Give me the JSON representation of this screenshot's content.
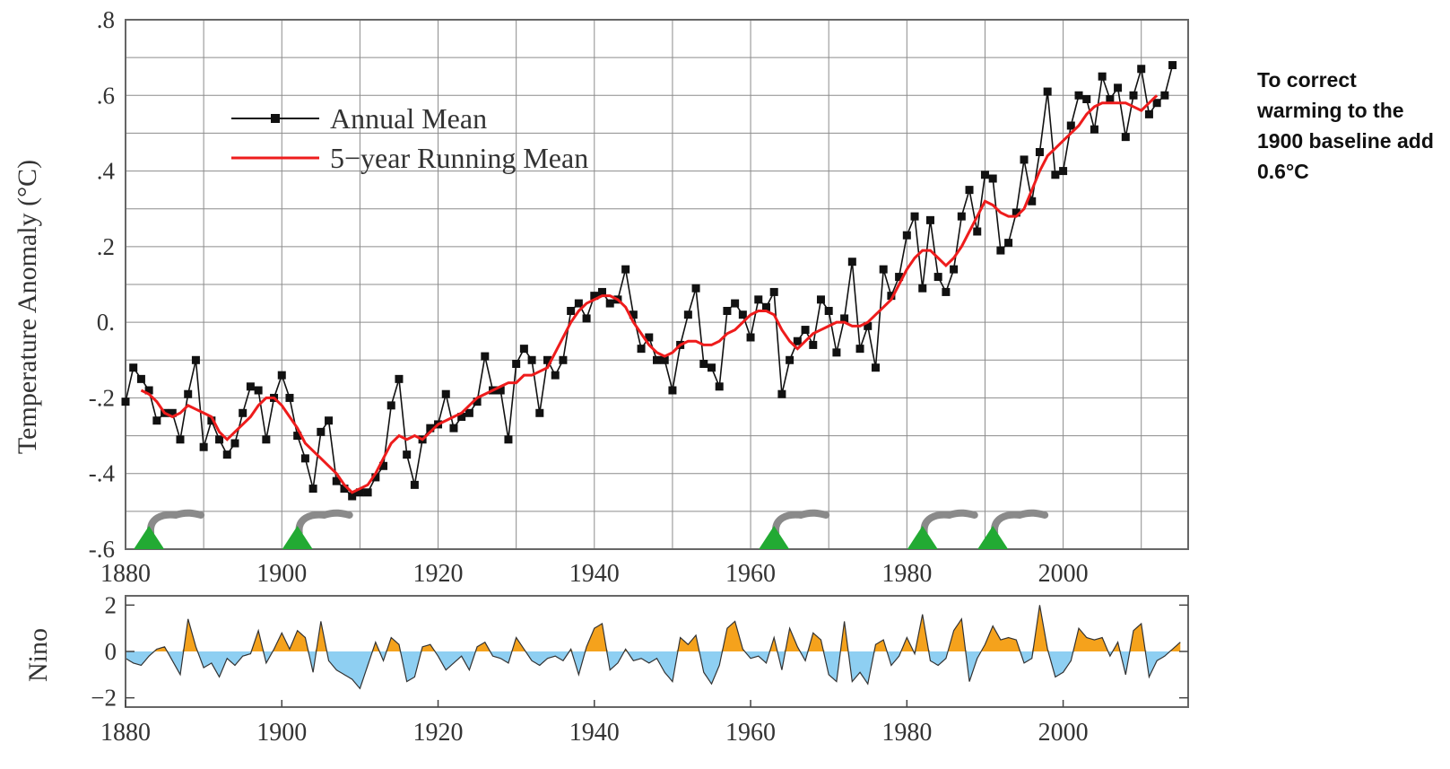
{
  "note": "To correct warming to the 1900 baseline add 0.6°C",
  "colors": {
    "annual": "#111111",
    "running": "#ee1c1c",
    "nino_pos": "#f5a21c",
    "nino_neg": "#8ecff2",
    "volcano": "#22aa33",
    "plume": "#8a8a8a",
    "grid": "#8c8c8c"
  },
  "icons": [
    "volcano-icon"
  ],
  "chart_data": [
    {
      "type": "line",
      "title": "",
      "xlabel": "",
      "ylabel": "Temperature Anomaly (°C)",
      "xlim": [
        1880,
        2016
      ],
      "ylim": [
        -0.6,
        0.8
      ],
      "grid": true,
      "legend_placement": "top-left",
      "x_tick_labels": [
        "1880",
        "1900",
        "1920",
        "1940",
        "1960",
        "1980",
        "2000"
      ],
      "y_tick_labels": [
        ".8",
        ".6",
        ".4",
        ".2",
        "0.",
        "-.2",
        "-.4",
        "-.6"
      ],
      "legend": [
        "Annual Mean",
        "5−year Running Mean"
      ],
      "volcano_years": [
        1883,
        1902,
        1963,
        1982,
        1991
      ],
      "series": [
        {
          "name": "Annual Mean",
          "x": [
            1880,
            1881,
            1882,
            1883,
            1884,
            1885,
            1886,
            1887,
            1888,
            1889,
            1890,
            1891,
            1892,
            1893,
            1894,
            1895,
            1896,
            1897,
            1898,
            1899,
            1900,
            1901,
            1902,
            1903,
            1904,
            1905,
            1906,
            1907,
            1908,
            1909,
            1910,
            1911,
            1912,
            1913,
            1914,
            1915,
            1916,
            1917,
            1918,
            1919,
            1920,
            1921,
            1922,
            1923,
            1924,
            1925,
            1926,
            1927,
            1928,
            1929,
            1930,
            1931,
            1932,
            1933,
            1934,
            1935,
            1936,
            1937,
            1938,
            1939,
            1940,
            1941,
            1942,
            1943,
            1944,
            1945,
            1946,
            1947,
            1948,
            1949,
            1950,
            1951,
            1952,
            1953,
            1954,
            1955,
            1956,
            1957,
            1958,
            1959,
            1960,
            1961,
            1962,
            1963,
            1964,
            1965,
            1966,
            1967,
            1968,
            1969,
            1970,
            1971,
            1972,
            1973,
            1974,
            1975,
            1976,
            1977,
            1978,
            1979,
            1980,
            1981,
            1982,
            1983,
            1984,
            1985,
            1986,
            1987,
            1988,
            1989,
            1990,
            1991,
            1992,
            1993,
            1994,
            1995,
            1996,
            1997,
            1998,
            1999,
            2000,
            2001,
            2002,
            2003,
            2004,
            2005,
            2006,
            2007,
            2008,
            2009,
            2010,
            2011,
            2012,
            2013,
            2014
          ],
          "values": [
            -0.21,
            -0.12,
            -0.15,
            -0.18,
            -0.26,
            -0.24,
            -0.24,
            -0.31,
            -0.19,
            -0.1,
            -0.33,
            -0.26,
            -0.31,
            -0.35,
            -0.32,
            -0.24,
            -0.17,
            -0.18,
            -0.31,
            -0.2,
            -0.14,
            -0.2,
            -0.3,
            -0.36,
            -0.44,
            -0.29,
            -0.26,
            -0.42,
            -0.44,
            -0.46,
            -0.45,
            -0.45,
            -0.41,
            -0.38,
            -0.22,
            -0.15,
            -0.35,
            -0.43,
            -0.31,
            -0.28,
            -0.27,
            -0.19,
            -0.28,
            -0.25,
            -0.24,
            -0.21,
            -0.09,
            -0.18,
            -0.18,
            -0.31,
            -0.11,
            -0.07,
            -0.1,
            -0.24,
            -0.1,
            -0.14,
            -0.1,
            0.03,
            0.05,
            0.01,
            0.07,
            0.08,
            0.05,
            0.06,
            0.14,
            0.02,
            -0.07,
            -0.04,
            -0.1,
            -0.1,
            -0.18,
            -0.06,
            0.02,
            0.09,
            -0.11,
            -0.12,
            -0.17,
            0.03,
            0.05,
            0.02,
            -0.04,
            0.06,
            0.04,
            0.08,
            -0.19,
            -0.1,
            -0.05,
            -0.02,
            -0.06,
            0.06,
            0.03,
            -0.08,
            0.01,
            0.16,
            -0.07,
            -0.01,
            -0.12,
            0.14,
            0.07,
            0.12,
            0.23,
            0.28,
            0.09,
            0.27,
            0.12,
            0.08,
            0.14,
            0.28,
            0.35,
            0.24,
            0.39,
            0.38,
            0.19,
            0.21,
            0.29,
            0.43,
            0.32,
            0.45,
            0.61,
            0.39,
            0.4,
            0.52,
            0.6,
            0.59,
            0.51,
            0.65,
            0.59,
            0.62,
            0.49,
            0.6,
            0.67,
            0.55,
            0.58,
            0.6,
            0.68
          ]
        },
        {
          "name": "5−year Running Mean",
          "x": [
            1882,
            1883,
            1884,
            1885,
            1886,
            1887,
            1888,
            1889,
            1890,
            1891,
            1892,
            1893,
            1894,
            1895,
            1896,
            1897,
            1898,
            1899,
            1900,
            1901,
            1902,
            1903,
            1904,
            1905,
            1906,
            1907,
            1908,
            1909,
            1910,
            1911,
            1912,
            1913,
            1914,
            1915,
            1916,
            1917,
            1918,
            1919,
            1920,
            1921,
            1922,
            1923,
            1924,
            1925,
            1926,
            1927,
            1928,
            1929,
            1930,
            1931,
            1932,
            1933,
            1934,
            1935,
            1936,
            1937,
            1938,
            1939,
            1940,
            1941,
            1942,
            1943,
            1944,
            1945,
            1946,
            1947,
            1948,
            1949,
            1950,
            1951,
            1952,
            1953,
            1954,
            1955,
            1956,
            1957,
            1958,
            1959,
            1960,
            1961,
            1962,
            1963,
            1964,
            1965,
            1966,
            1967,
            1968,
            1969,
            1970,
            1971,
            1972,
            1973,
            1974,
            1975,
            1976,
            1977,
            1978,
            1979,
            1980,
            1981,
            1982,
            1983,
            1984,
            1985,
            1986,
            1987,
            1988,
            1989,
            1990,
            1991,
            1992,
            1993,
            1994,
            1995,
            1996,
            1997,
            1998,
            1999,
            2000,
            2001,
            2002,
            2003,
            2004,
            2005,
            2006,
            2007,
            2008,
            2009,
            2010,
            2011,
            2012
          ],
          "values": [
            -0.18,
            -0.19,
            -0.21,
            -0.24,
            -0.25,
            -0.24,
            -0.22,
            -0.23,
            -0.24,
            -0.25,
            -0.29,
            -0.31,
            -0.29,
            -0.27,
            -0.25,
            -0.22,
            -0.2,
            -0.2,
            -0.22,
            -0.25,
            -0.28,
            -0.32,
            -0.34,
            -0.36,
            -0.38,
            -0.4,
            -0.43,
            -0.45,
            -0.44,
            -0.43,
            -0.4,
            -0.36,
            -0.32,
            -0.3,
            -0.31,
            -0.3,
            -0.31,
            -0.29,
            -0.27,
            -0.26,
            -0.25,
            -0.24,
            -0.22,
            -0.2,
            -0.19,
            -0.18,
            -0.17,
            -0.16,
            -0.16,
            -0.14,
            -0.14,
            -0.13,
            -0.12,
            -0.08,
            -0.04,
            0.0,
            0.03,
            0.05,
            0.06,
            0.07,
            0.07,
            0.06,
            0.04,
            0.0,
            -0.03,
            -0.06,
            -0.08,
            -0.09,
            -0.08,
            -0.06,
            -0.05,
            -0.05,
            -0.06,
            -0.06,
            -0.05,
            -0.03,
            -0.02,
            0.0,
            0.02,
            0.03,
            0.03,
            0.02,
            -0.02,
            -0.05,
            -0.07,
            -0.05,
            -0.03,
            -0.02,
            -0.01,
            0.0,
            0.0,
            -0.01,
            -0.01,
            0.0,
            0.02,
            0.04,
            0.06,
            0.1,
            0.14,
            0.17,
            0.19,
            0.19,
            0.17,
            0.15,
            0.17,
            0.2,
            0.24,
            0.28,
            0.32,
            0.31,
            0.29,
            0.28,
            0.28,
            0.3,
            0.35,
            0.4,
            0.44,
            0.46,
            0.48,
            0.5,
            0.52,
            0.55,
            0.57,
            0.58,
            0.58,
            0.58,
            0.58,
            0.57,
            0.56,
            0.58,
            0.6
          ]
        }
      ]
    },
    {
      "type": "area",
      "title": "",
      "xlabel": "",
      "ylabel": "Nino",
      "xlim": [
        1880,
        2016
      ],
      "ylim": [
        -2.4,
        2.4
      ],
      "grid": false,
      "x_tick_labels": [
        "1880",
        "1900",
        "1920",
        "1940",
        "1960",
        "1980",
        "2000"
      ],
      "y_tick_labels": [
        "2",
        "0",
        "−2"
      ],
      "series": [
        {
          "name": "",
          "x": [
            1880,
            1881,
            1882,
            1883,
            1884,
            1885,
            1886,
            1887,
            1888,
            1889,
            1890,
            1891,
            1892,
            1893,
            1894,
            1895,
            1896,
            1897,
            1898,
            1899,
            1900,
            1901,
            1902,
            1903,
            1904,
            1905,
            1906,
            1907,
            1908,
            1909,
            1910,
            1911,
            1912,
            1913,
            1914,
            1915,
            1916,
            1917,
            1918,
            1919,
            1920,
            1921,
            1922,
            1923,
            1924,
            1925,
            1926,
            1927,
            1928,
            1929,
            1930,
            1931,
            1932,
            1933,
            1934,
            1935,
            1936,
            1937,
            1938,
            1939,
            1940,
            1941,
            1942,
            1943,
            1944,
            1945,
            1946,
            1947,
            1948,
            1949,
            1950,
            1951,
            1952,
            1953,
            1954,
            1955,
            1956,
            1957,
            1958,
            1959,
            1960,
            1961,
            1962,
            1963,
            1964,
            1965,
            1966,
            1967,
            1968,
            1969,
            1970,
            1971,
            1972,
            1973,
            1974,
            1975,
            1976,
            1977,
            1978,
            1979,
            1980,
            1981,
            1982,
            1983,
            1984,
            1985,
            1986,
            1987,
            1988,
            1989,
            1990,
            1991,
            1992,
            1993,
            1994,
            1995,
            1996,
            1997,
            1998,
            1999,
            2000,
            2001,
            2002,
            2003,
            2004,
            2005,
            2006,
            2007,
            2008,
            2009,
            2010,
            2011,
            2012,
            2013,
            2014,
            2015
          ],
          "values": [
            -0.3,
            -0.5,
            -0.6,
            -0.2,
            0.1,
            0.2,
            -0.4,
            -1.0,
            1.4,
            0.2,
            -0.7,
            -0.5,
            -1.1,
            -0.3,
            -0.6,
            -0.2,
            -0.1,
            0.9,
            -0.5,
            0.1,
            0.8,
            0.1,
            0.9,
            0.6,
            -0.9,
            1.3,
            -0.4,
            -0.8,
            -1.0,
            -1.2,
            -1.6,
            -0.6,
            0.4,
            -0.4,
            0.6,
            0.3,
            -1.3,
            -1.1,
            0.2,
            0.3,
            -0.2,
            -0.8,
            -0.5,
            -0.2,
            -0.8,
            0.2,
            0.4,
            -0.2,
            -0.3,
            -0.5,
            0.6,
            0.1,
            -0.4,
            -0.6,
            -0.3,
            -0.2,
            -0.4,
            0.1,
            -1.0,
            0.2,
            1.0,
            1.2,
            -0.8,
            -0.5,
            0.1,
            -0.4,
            -0.3,
            -0.5,
            -0.3,
            -0.9,
            -1.3,
            0.6,
            0.3,
            0.7,
            -0.9,
            -1.4,
            -0.6,
            1.0,
            1.3,
            0.1,
            -0.3,
            -0.2,
            -0.5,
            0.6,
            -0.8,
            1.0,
            0.2,
            -0.4,
            0.8,
            0.5,
            -1.0,
            -1.3,
            1.3,
            -1.3,
            -0.9,
            -1.4,
            0.3,
            0.5,
            -0.6,
            -0.2,
            0.6,
            -0.1,
            1.6,
            -0.4,
            -0.6,
            -0.3,
            0.9,
            1.4,
            -1.3,
            -0.3,
            0.3,
            1.1,
            0.5,
            0.6,
            0.5,
            -0.5,
            -0.3,
            2.0,
            0.1,
            -1.1,
            -0.9,
            -0.4,
            1.0,
            0.6,
            0.5,
            0.6,
            -0.2,
            0.4,
            -1.0,
            0.9,
            1.2,
            -1.1,
            -0.4,
            -0.2,
            0.1,
            0.4
          ]
        }
      ]
    }
  ]
}
